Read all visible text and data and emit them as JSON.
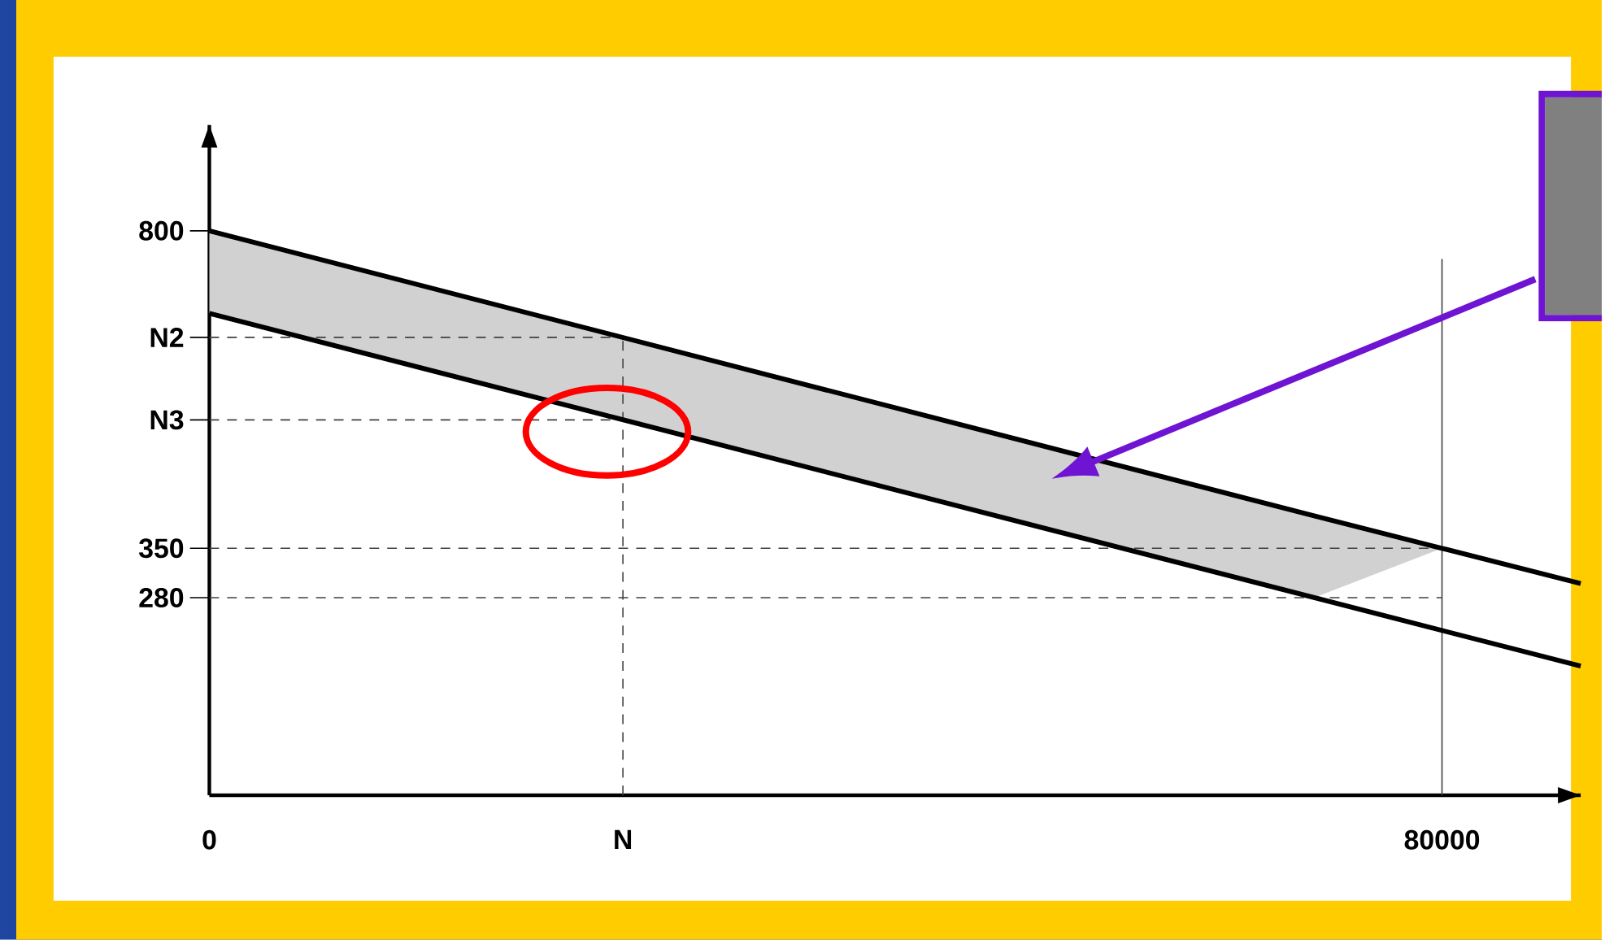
{
  "chart_data": {
    "type": "line",
    "xlim": [
      0,
      89000
    ],
    "ylim": [
      0,
      950
    ],
    "xticks": [
      {
        "value": 0,
        "label": "0"
      },
      {
        "value": 26840,
        "label": "N"
      },
      80000
    ],
    "yticks": [
      280,
      350,
      {
        "value": 532,
        "label": "N3"
      },
      {
        "value": 649,
        "label": "N2"
      },
      800
    ],
    "series": [
      {
        "color": "#000000",
        "x": [
          0,
          71700,
          80000,
          89000
        ],
        "values": [
          800,
          396,
          350,
          300
        ],
        "lower": [
          683,
          280,
          350,
          null
        ],
        "upper": [
          800,
          396,
          350,
          null
        ]
      },
      {
        "color": "#000000",
        "x": [
          0,
          89000
        ],
        "values": [
          683,
          183
        ]
      }
    ],
    "ref_lines": [
      {
        "axis": "x",
        "value": 26840,
        "line_style": "dashed",
        "color": "#404040"
      },
      {
        "axis": "x",
        "value": 80000,
        "line_style": "solid",
        "color": "#404040"
      },
      {
        "axis": "y",
        "value": 649,
        "line_style": "dashed",
        "color": "#404040"
      },
      {
        "axis": "y",
        "value": 532,
        "line_style": "dashed",
        "color": "#404040"
      },
      {
        "axis": "y",
        "value": 350,
        "line_style": "dashed",
        "color": "#404040"
      },
      {
        "axis": "y",
        "value": 280,
        "line_style": "dashed",
        "color": "#404040"
      }
    ],
    "grid": false
  }
}
